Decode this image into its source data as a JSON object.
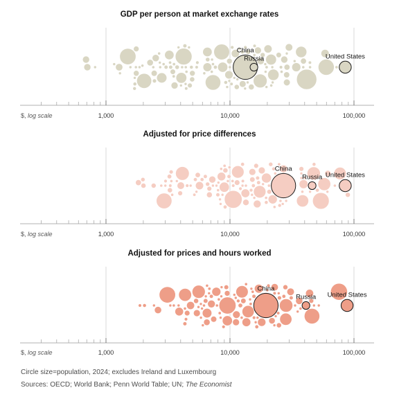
{
  "footnotes": {
    "size_note": "Circle size=population, 2024; excludes Ireland and Luxembourg",
    "sources_prefix": "Sources: OECD; World Bank; Penn World Table; UN; ",
    "sources_publisher": "The Economist"
  },
  "axis": {
    "note_prefix": "$,",
    "note_scale": "log scale",
    "tick_values": [
      1000,
      10000,
      100000
    ],
    "tick_labels": [
      "1,000",
      "10,000",
      "100,000"
    ],
    "xlim": [
      300,
      180000
    ]
  },
  "chart_data": [
    {
      "type": "scatter",
      "title": "GDP per person at market exchange rates",
      "color_fill": "#d9d6c3",
      "color_stroke": "#ffffff",
      "xscale": "log",
      "countries": [
        {
          "name": "China",
          "x": 13300,
          "pop_m": 1410
        },
        {
          "name": "Russia",
          "x": 15600,
          "pop_m": 144
        },
        {
          "name": "United States",
          "x": 85000,
          "pop_m": 340
        }
      ],
      "others_range": [
        500,
        110000
      ]
    },
    {
      "type": "scatter",
      "title": "Adjusted for price differences",
      "color_fill": "#f5cdc2",
      "color_stroke": "#ffffff",
      "xscale": "log",
      "countries": [
        {
          "name": "China",
          "x": 27000,
          "pop_m": 1410
        },
        {
          "name": "Russia",
          "x": 46000,
          "pop_m": 144
        },
        {
          "name": "United States",
          "x": 85000,
          "pop_m": 340
        }
      ],
      "others_range": [
        1300,
        160000
      ]
    },
    {
      "type": "scatter",
      "title": "Adjusted for prices and hours worked",
      "color_fill": "#ee9e88",
      "color_stroke": "#ffffff",
      "xscale": "log",
      "countries": [
        {
          "name": "China",
          "x": 19500,
          "pop_m": 1410
        },
        {
          "name": "Russia",
          "x": 41000,
          "pop_m": 144
        },
        {
          "name": "United States",
          "x": 88000,
          "pop_m": 340
        }
      ],
      "others_range": [
        1300,
        120000
      ]
    }
  ]
}
